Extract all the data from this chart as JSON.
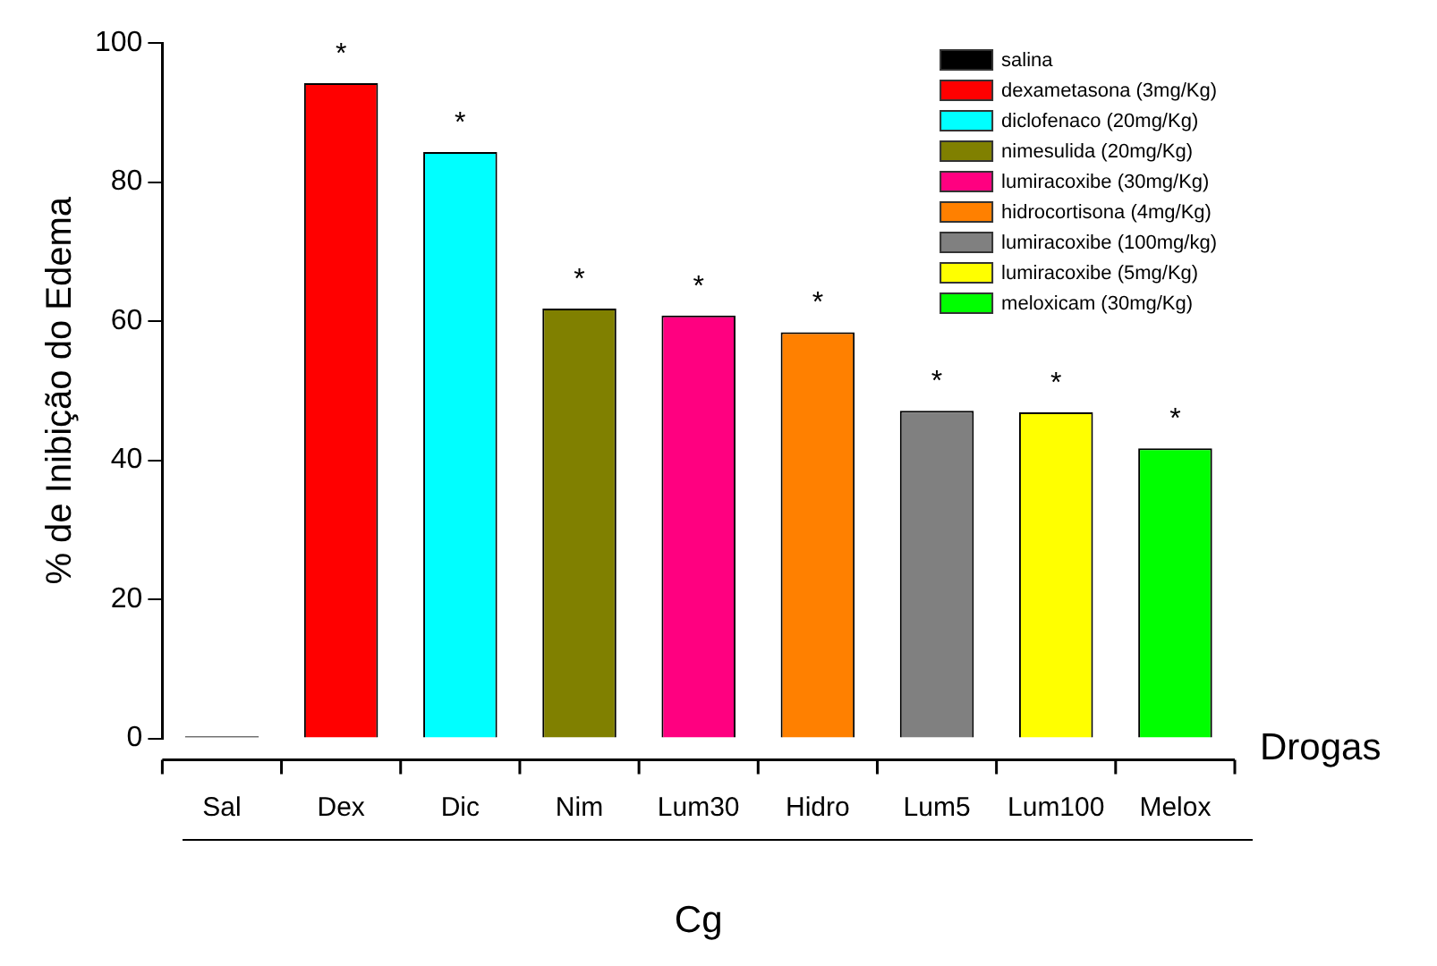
{
  "chart_data": {
    "type": "bar",
    "ylabel": "% de Inibição do Edema",
    "xlabel": "Cg",
    "categories": [
      "Sal",
      "Dex",
      "Dic",
      "Nim",
      "Lum30",
      "Hidro",
      "Lum5",
      "Lum100",
      "Melox"
    ],
    "series": [
      {
        "name": "salina",
        "color": "#000000",
        "values": [
          0.3,
          null,
          null,
          null,
          null,
          null,
          null,
          null,
          null
        ]
      },
      {
        "name": "dexametasona (3mg/Kg)",
        "color": "#ff0000",
        "values": [
          null,
          94.2,
          null,
          null,
          null,
          null,
          null,
          null,
          null
        ]
      },
      {
        "name": "diclofenaco (20mg/Kg)",
        "color": "#00ffff",
        "values": [
          null,
          null,
          84.3,
          null,
          null,
          null,
          null,
          null,
          null
        ]
      },
      {
        "name": "nimesulida (20mg/Kg)",
        "color": "#808000",
        "values": [
          null,
          null,
          null,
          61.8,
          null,
          null,
          null,
          null,
          null
        ]
      },
      {
        "name": "lumiracoxibe (30mg/Kg)",
        "color": "#ff0080",
        "values": [
          null,
          null,
          null,
          null,
          60.8,
          null,
          null,
          null,
          null
        ]
      },
      {
        "name": "hidrocortisona (4mg/Kg)",
        "color": "#ff8000",
        "values": [
          null,
          null,
          null,
          null,
          null,
          58.4,
          null,
          null,
          null
        ]
      },
      {
        "name": "lumiracoxibe (100mg/kg)",
        "color": "#808080",
        "values": [
          null,
          null,
          null,
          null,
          null,
          null,
          47.1,
          null,
          null
        ]
      },
      {
        "name": "lumiracoxibe (5mg/Kg)",
        "color": "#ffff00",
        "values": [
          null,
          null,
          null,
          null,
          null,
          null,
          null,
          46.9,
          null
        ]
      },
      {
        "name": "meloxicam (30mg/Kg)",
        "color": "#00ff00",
        "values": [
          null,
          null,
          null,
          null,
          null,
          null,
          null,
          null,
          41.7
        ]
      }
    ],
    "ylim": [
      0,
      100
    ],
    "yticks": [
      0,
      20,
      40,
      60,
      80,
      100
    ],
    "grid": false,
    "legend": "top right",
    "annotations": [
      "Drogas",
      {
        "text": "*",
        "x": "Dex",
        "y": 94.2
      },
      {
        "text": "*",
        "x": "Dic",
        "y": 84.3
      },
      {
        "text": "*",
        "x": "Nim",
        "y": 61.8
      },
      {
        "text": "*",
        "x": "Lum30",
        "y": 60.8
      },
      {
        "text": "*",
        "x": "Hidro",
        "y": 58.4
      },
      {
        "text": "*",
        "x": "Lum5",
        "y": 47.1
      },
      {
        "text": "*",
        "x": "Lum100",
        "y": 46.9
      },
      {
        "text": "*",
        "x": "Melox",
        "y": 41.7
      }
    ]
  }
}
